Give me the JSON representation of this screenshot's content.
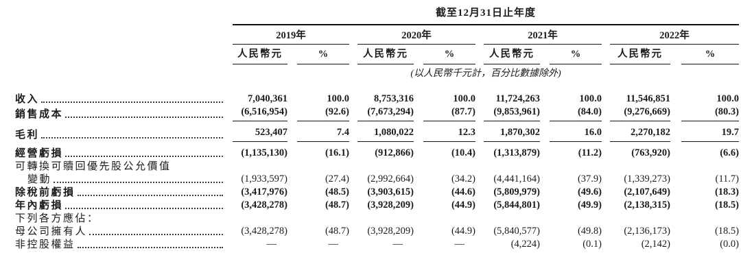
{
  "table": {
    "title": "截至12月31日止年度",
    "note": "(以人民幣千元計，百分比數據除外)",
    "years": [
      "2019年",
      "2020年",
      "2021年",
      "2022年"
    ],
    "subheaders": {
      "amount": "人民幣元",
      "percent": "%"
    },
    "rows": [
      {
        "label": "收入",
        "bold": true,
        "leaders": true,
        "indent": false,
        "rule_below": false,
        "gap_above": false,
        "values": [
          "7,040,361",
          "100.0",
          "8,753,316",
          "100.0",
          "11,724,263",
          "100.0",
          "11,546,851",
          "100.0"
        ]
      },
      {
        "label": "銷售成本",
        "bold": true,
        "leaders": true,
        "indent": false,
        "rule_below": true,
        "gap_above": false,
        "values": [
          "(6,516,954)",
          "(92.6)",
          "(7,673,294)",
          "(87.7)",
          "(9,853,961)",
          "(84.0)",
          "(9,276,669)",
          "(80.3)"
        ]
      },
      {
        "label": "毛利",
        "bold": true,
        "leaders": true,
        "indent": false,
        "rule_below": true,
        "gap_above": true,
        "values": [
          "523,407",
          "7.4",
          "1,080,022",
          "12.3",
          "1,870,302",
          "16.0",
          "2,270,182",
          "19.7"
        ]
      },
      {
        "label": "經營虧損",
        "bold": true,
        "leaders": true,
        "indent": false,
        "rule_below": false,
        "gap_above": true,
        "values": [
          "(1,135,130)",
          "(16.1)",
          "(912,866)",
          "(10.4)",
          "(1,313,879)",
          "(11.2)",
          "(763,920)",
          "(6.6)"
        ]
      },
      {
        "label": "可轉換可贖回優先股公允價值",
        "bold": false,
        "leaders": false,
        "indent": false,
        "rule_below": false,
        "gap_above": false,
        "values": [
          "",
          "",
          "",
          "",
          "",
          "",
          "",
          ""
        ]
      },
      {
        "label": "變動",
        "bold": false,
        "leaders": true,
        "indent": true,
        "rule_below": false,
        "gap_above": false,
        "values": [
          "(1,933,597)",
          "(27.4)",
          "(2,992,664)",
          "(34.2)",
          "(4,441,164)",
          "(37.9)",
          "(1,339,273)",
          "(11.7)"
        ]
      },
      {
        "label": "除稅前虧損",
        "bold": true,
        "leaders": true,
        "indent": false,
        "rule_below": false,
        "gap_above": false,
        "values": [
          "(3,417,976)",
          "(48.5)",
          "(3,903,615)",
          "(44.6)",
          "(5,809,979)",
          "(49.6)",
          "(2,107,649)",
          "(18.3)"
        ]
      },
      {
        "label": "年內虧損",
        "bold": true,
        "leaders": true,
        "indent": false,
        "rule_below": false,
        "gap_above": false,
        "values": [
          "(3,428,278)",
          "(48.7)",
          "(3,928,209)",
          "(44.9)",
          "(5,844,801)",
          "(49.9)",
          "(2,138,315)",
          "(18.5)"
        ]
      },
      {
        "label": "下列各方應佔：",
        "bold": false,
        "leaders": false,
        "indent": false,
        "rule_below": false,
        "gap_above": false,
        "values": [
          "",
          "",
          "",
          "",
          "",
          "",
          "",
          ""
        ]
      },
      {
        "label": "母公司擁有人",
        "bold": false,
        "leaders": true,
        "indent": false,
        "rule_below": false,
        "gap_above": false,
        "values": [
          "(3,428,278)",
          "(48.7)",
          "(3,928,209)",
          "(44.9)",
          "(5,840,577)",
          "(49.8)",
          "(2,136,173)",
          "(18.5)"
        ]
      },
      {
        "label": "非控股權益",
        "bold": false,
        "leaders": true,
        "indent": false,
        "rule_below": false,
        "gap_above": false,
        "values": [
          "—",
          "—",
          "—",
          "—",
          "(4,224)",
          "(0.1)",
          "(2,142)",
          "(0.0)"
        ]
      }
    ]
  }
}
